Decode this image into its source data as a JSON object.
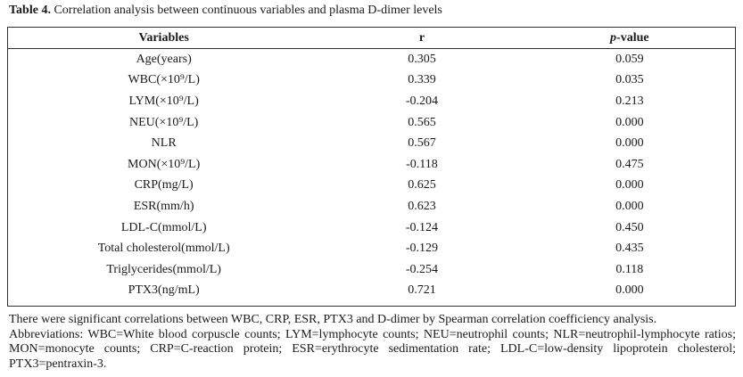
{
  "caption": {
    "label": "Table 4.",
    "text": "Correlation analysis between continuous variables and plasma D-dimer levels"
  },
  "table": {
    "headers": {
      "variables": "Variables",
      "r": "r",
      "p_italic": "p",
      "p_rest": "-value"
    },
    "rows": [
      {
        "variable": "Age(years)",
        "r": "0.305",
        "p": "0.059"
      },
      {
        "variable": "WBC(×10⁹/L)",
        "r": "0.339",
        "p": "0.035"
      },
      {
        "variable": "LYM(×10⁹/L)",
        "r": "-0.204",
        "p": "0.213"
      },
      {
        "variable": "NEU(×10⁹/L)",
        "r": "0.565",
        "p": "0.000"
      },
      {
        "variable": "NLR",
        "r": "0.567",
        "p": "0.000"
      },
      {
        "variable": "MON(×10⁹/L)",
        "r": "-0.118",
        "p": "0.475"
      },
      {
        "variable": "CRP(mg/L)",
        "r": "0.625",
        "p": "0.000"
      },
      {
        "variable": "ESR(mm/h)",
        "r": "0.623",
        "p": "0.000"
      },
      {
        "variable": "LDL-C(mmol/L)",
        "r": "-0.124",
        "p": "0.450"
      },
      {
        "variable": "Total cholesterol(mmol/L)",
        "r": "-0.129",
        "p": "0.435"
      },
      {
        "variable": "Triglycerides(mmol/L)",
        "r": "-0.254",
        "p": "0.118"
      },
      {
        "variable": "PTX3(ng/mL)",
        "r": "0.721",
        "p": "0.000"
      }
    ]
  },
  "notes": {
    "line1": "There were significant correlations between WBC, CRP, ESR, PTX3 and D-dimer by Spearman correlation coefficiency analysis.",
    "line2": "Abbreviations: WBC=White blood corpuscle counts; LYM=lymphocyte counts; NEU=neutrophil counts; NLR=neutrophil-lymphocyte ratios;",
    "line3": "MON=monocyte counts; CRP=C-reaction protein; ESR=erythrocyte sedimentation rate; LDL-C=low-density lipoprotein cholesterol;",
    "line4": "PTX3=pentraxin-3."
  }
}
